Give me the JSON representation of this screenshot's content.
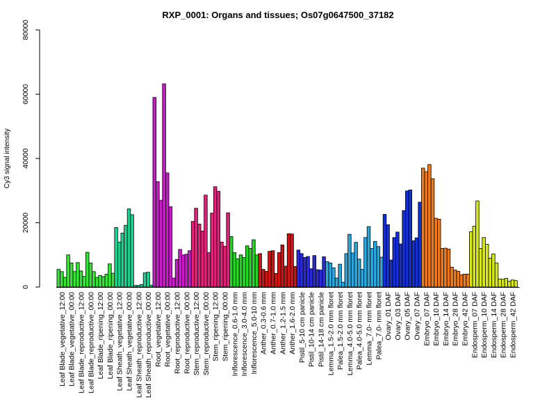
{
  "chart_data": {
    "type": "bar",
    "title": "RXP_0001: Organs and tissues; Os07g0647500_37182",
    "xlabel": "",
    "ylabel": "Cy3 signal intensity",
    "ylim": [
      0,
      80000
    ],
    "yticks": [
      0,
      20000,
      40000,
      60000,
      80000
    ],
    "ytick_labels": [
      "0",
      "20000",
      "40000",
      "60000",
      "80000"
    ],
    "categories": [
      "Leaf Blade_vegetative_12:00",
      "Leaf Blade_vegetative_00:00",
      "Leaf Blade_reproductive_12:00",
      "Leaf Blade_reproductive_00:00",
      "Leaf Blade_ripening_12:00",
      "Leaf Blade_ripening_00:00",
      "Leaf Sheath_vegetative_12:00",
      "Leaf Sheath_vegetative_00:00",
      "Leaf Sheath_reproductive_12:00",
      "Leaf Sheath_reproductive_00:00",
      "Root_vegetative_12:00",
      "Root_vegetative_00:00",
      "Root_reproductive_12:00",
      "Root_reproductive_00:00",
      "Stem_reproductive_12:00",
      "Stem_reproductive_00:00",
      "Stem_ripening_12:00",
      "Stem_ripening_00:00",
      "Inflorescence_0.6-1.0 mm",
      "Inflorescence_3.0-4.0 mm",
      "Inflorescence_5.0-10 mm",
      "Anther_0.3-0.6 mm",
      "Anther_0.7-1.0 mm",
      "Anther_1.2-1.5 mm",
      "Anther_1.6-2.0 mm",
      "Pistil_5-10 cm panicle",
      "Pistil_10-14 cm panicle",
      "Pistil_14-18 cm panicle",
      "Lemma_1.5-2.0 mm floret",
      "Palea_1.5-2.0 mm floret",
      "Lemma_4.0-5.0 mm floret",
      "Palea_4.0-5.0 mm floret",
      "Lemma_7.0- mm floret",
      "Palea_7.0- mm floret",
      "Ovary_01 DAF",
      "Ovary_03 DAF",
      "Ovary_05 DAF",
      "Ovary_07 DAF",
      "Embryo_07 DAF",
      "Embryo_10 DAF",
      "Embryo_14 DAF",
      "Embryo_28 DAF",
      "Embryo_42 DAF",
      "Endosperm_07 DAF",
      "Endosperm_10 DAF",
      "Endosperm_14 DAF",
      "Endosperm_28 DAF",
      "Endosperm_42 DAF"
    ],
    "category_colors": [
      "#36e336",
      "#36e336",
      "#36e336",
      "#36e336",
      "#36e336",
      "#36e336",
      "#1fcf8f",
      "#1fcf8f",
      "#1fcf8f",
      "#1fcf8f",
      "#c81cc8",
      "#c81cc8",
      "#c81cc8",
      "#c81cc8",
      "#e0237a",
      "#e0237a",
      "#e0237a",
      "#e0237a",
      "#26d426",
      "#26d426",
      "#26d426",
      "#cc1515",
      "#cc1515",
      "#cc1515",
      "#cc1515",
      "#2b2bd2",
      "#2b2bd2",
      "#2b2bd2",
      "#2aa7dc",
      "#2aa7dc",
      "#2aa7dc",
      "#2aa7dc",
      "#2aa7dc",
      "#2aa7dc",
      "#1530d0",
      "#1530d0",
      "#1530d0",
      "#1530d0",
      "#ee7a1c",
      "#ee7a1c",
      "#ee7a1c",
      "#ee7a1c",
      "#ee7a1c",
      "#d6e81c",
      "#d6e81c",
      "#d6e81c",
      "#d6e81c",
      "#d6e81c"
    ],
    "values": [
      [
        5500,
        4800,
        3000
      ],
      [
        10000,
        7500,
        4800
      ],
      [
        7600,
        5000,
        3300
      ],
      [
        10800,
        7500,
        4800
      ],
      [
        3000,
        3600,
        3200
      ],
      [
        4000,
        7200,
        4300
      ],
      [
        18500,
        14000,
        16800
      ],
      [
        19200,
        24300,
        22500
      ],
      [
        500,
        500,
        800
      ],
      [
        4400,
        4600,
        600
      ],
      [
        59000,
        32800,
        27000
      ],
      [
        63200,
        35500,
        25000
      ],
      [
        2800,
        8600,
        11700
      ],
      [
        10000,
        10200,
        11300
      ],
      [
        20400,
        24500,
        19600
      ],
      [
        17400,
        28600,
        10700
      ],
      [
        23000,
        31200,
        29800
      ],
      [
        14000,
        12700,
        23100
      ],
      [
        15700,
        10700,
        8800
      ],
      [
        10000,
        9200,
        12800
      ],
      [
        12000,
        14700,
        10000
      ],
      [
        10400,
        5500,
        4900
      ],
      [
        11100,
        11300,
        4200
      ],
      [
        10700,
        13100,
        6500
      ],
      [
        16600,
        16500,
        6400
      ],
      [
        11500,
        10400,
        9200
      ],
      [
        9500,
        5700,
        9800
      ],
      [
        5400,
        5300,
        9400
      ],
      [
        7900,
        7500,
        6000
      ],
      [
        2800,
        7100,
        1500
      ],
      [
        10400,
        16400,
        10600
      ],
      [
        13900,
        8700,
        5500
      ],
      [
        15400,
        18800,
        12000
      ],
      [
        14200,
        12600,
        9300
      ],
      [
        22600,
        19400,
        8400
      ],
      [
        15400,
        17100,
        13400
      ],
      [
        23800,
        29900,
        30200
      ],
      [
        14400,
        15300,
        26400
      ],
      [
        37000,
        35900,
        38100
      ],
      [
        33700,
        21400,
        21100
      ],
      [
        12000,
        12100,
        11800
      ],
      [
        6200,
        5300,
        4900
      ],
      [
        3800,
        4000,
        4000
      ],
      [
        17200,
        18900,
        26800
      ],
      [
        12000,
        15400,
        13300
      ],
      [
        9000,
        10300,
        7500
      ],
      [
        2500,
        2400,
        2700
      ],
      [
        1800,
        2200,
        2000
      ]
    ]
  }
}
